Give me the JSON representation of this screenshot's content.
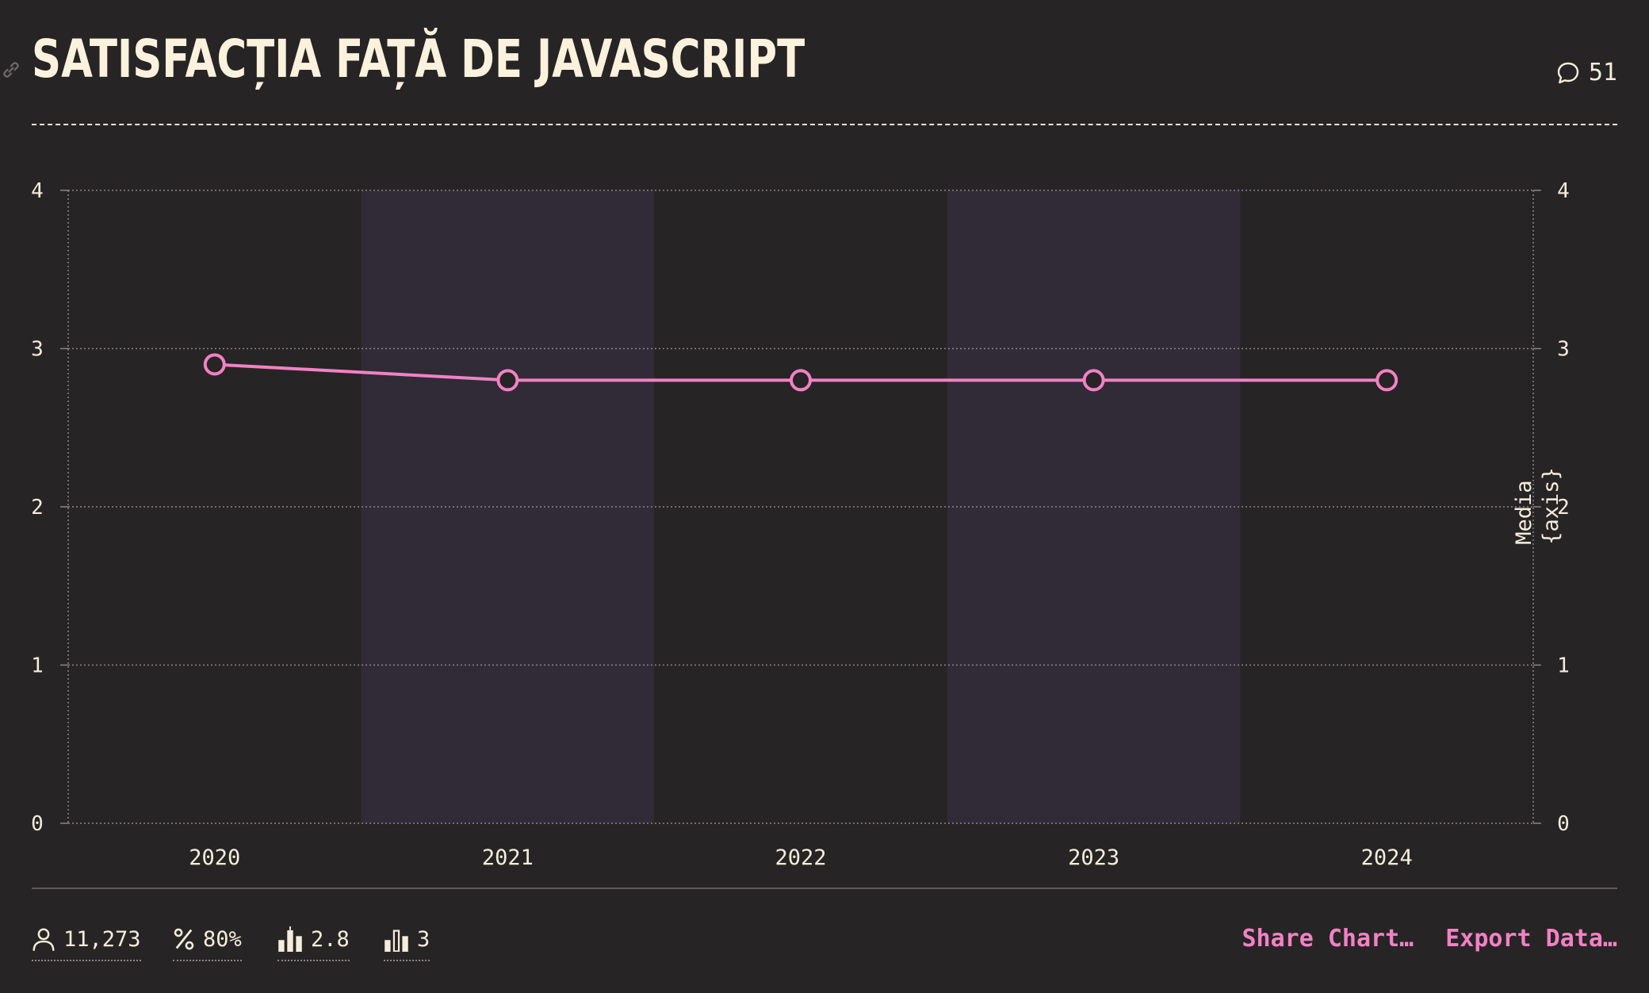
{
  "header": {
    "title": "SATISFACȚIA FAȚĂ DE JAVASCRIPT",
    "comment_count": "51"
  },
  "chart_data": {
    "type": "line",
    "title": "SATISFACȚIA FAȚĂ DE JAVASCRIPT",
    "categories": [
      "2020",
      "2021",
      "2022",
      "2023",
      "2024"
    ],
    "series": [
      {
        "values": [
          2.9,
          2.8,
          2.8,
          2.8,
          2.8
        ]
      }
    ],
    "ylim": [
      0,
      4
    ],
    "yticks": [
      "0",
      "1",
      "2",
      "3",
      "4"
    ],
    "right_axis_label_lines": [
      "Media",
      "{axis}"
    ],
    "grid": true,
    "line_color": "#f281c6",
    "band_color": "#302b36"
  },
  "footer": {
    "respondents": "11,273",
    "percentage": "80%",
    "average": "2.8",
    "rank": "3",
    "share_label": "Share Chart…",
    "export_label": "Export Data…"
  },
  "colors": {
    "background": "#272425",
    "accent": "#f281c6",
    "text": "#f4eddc"
  }
}
